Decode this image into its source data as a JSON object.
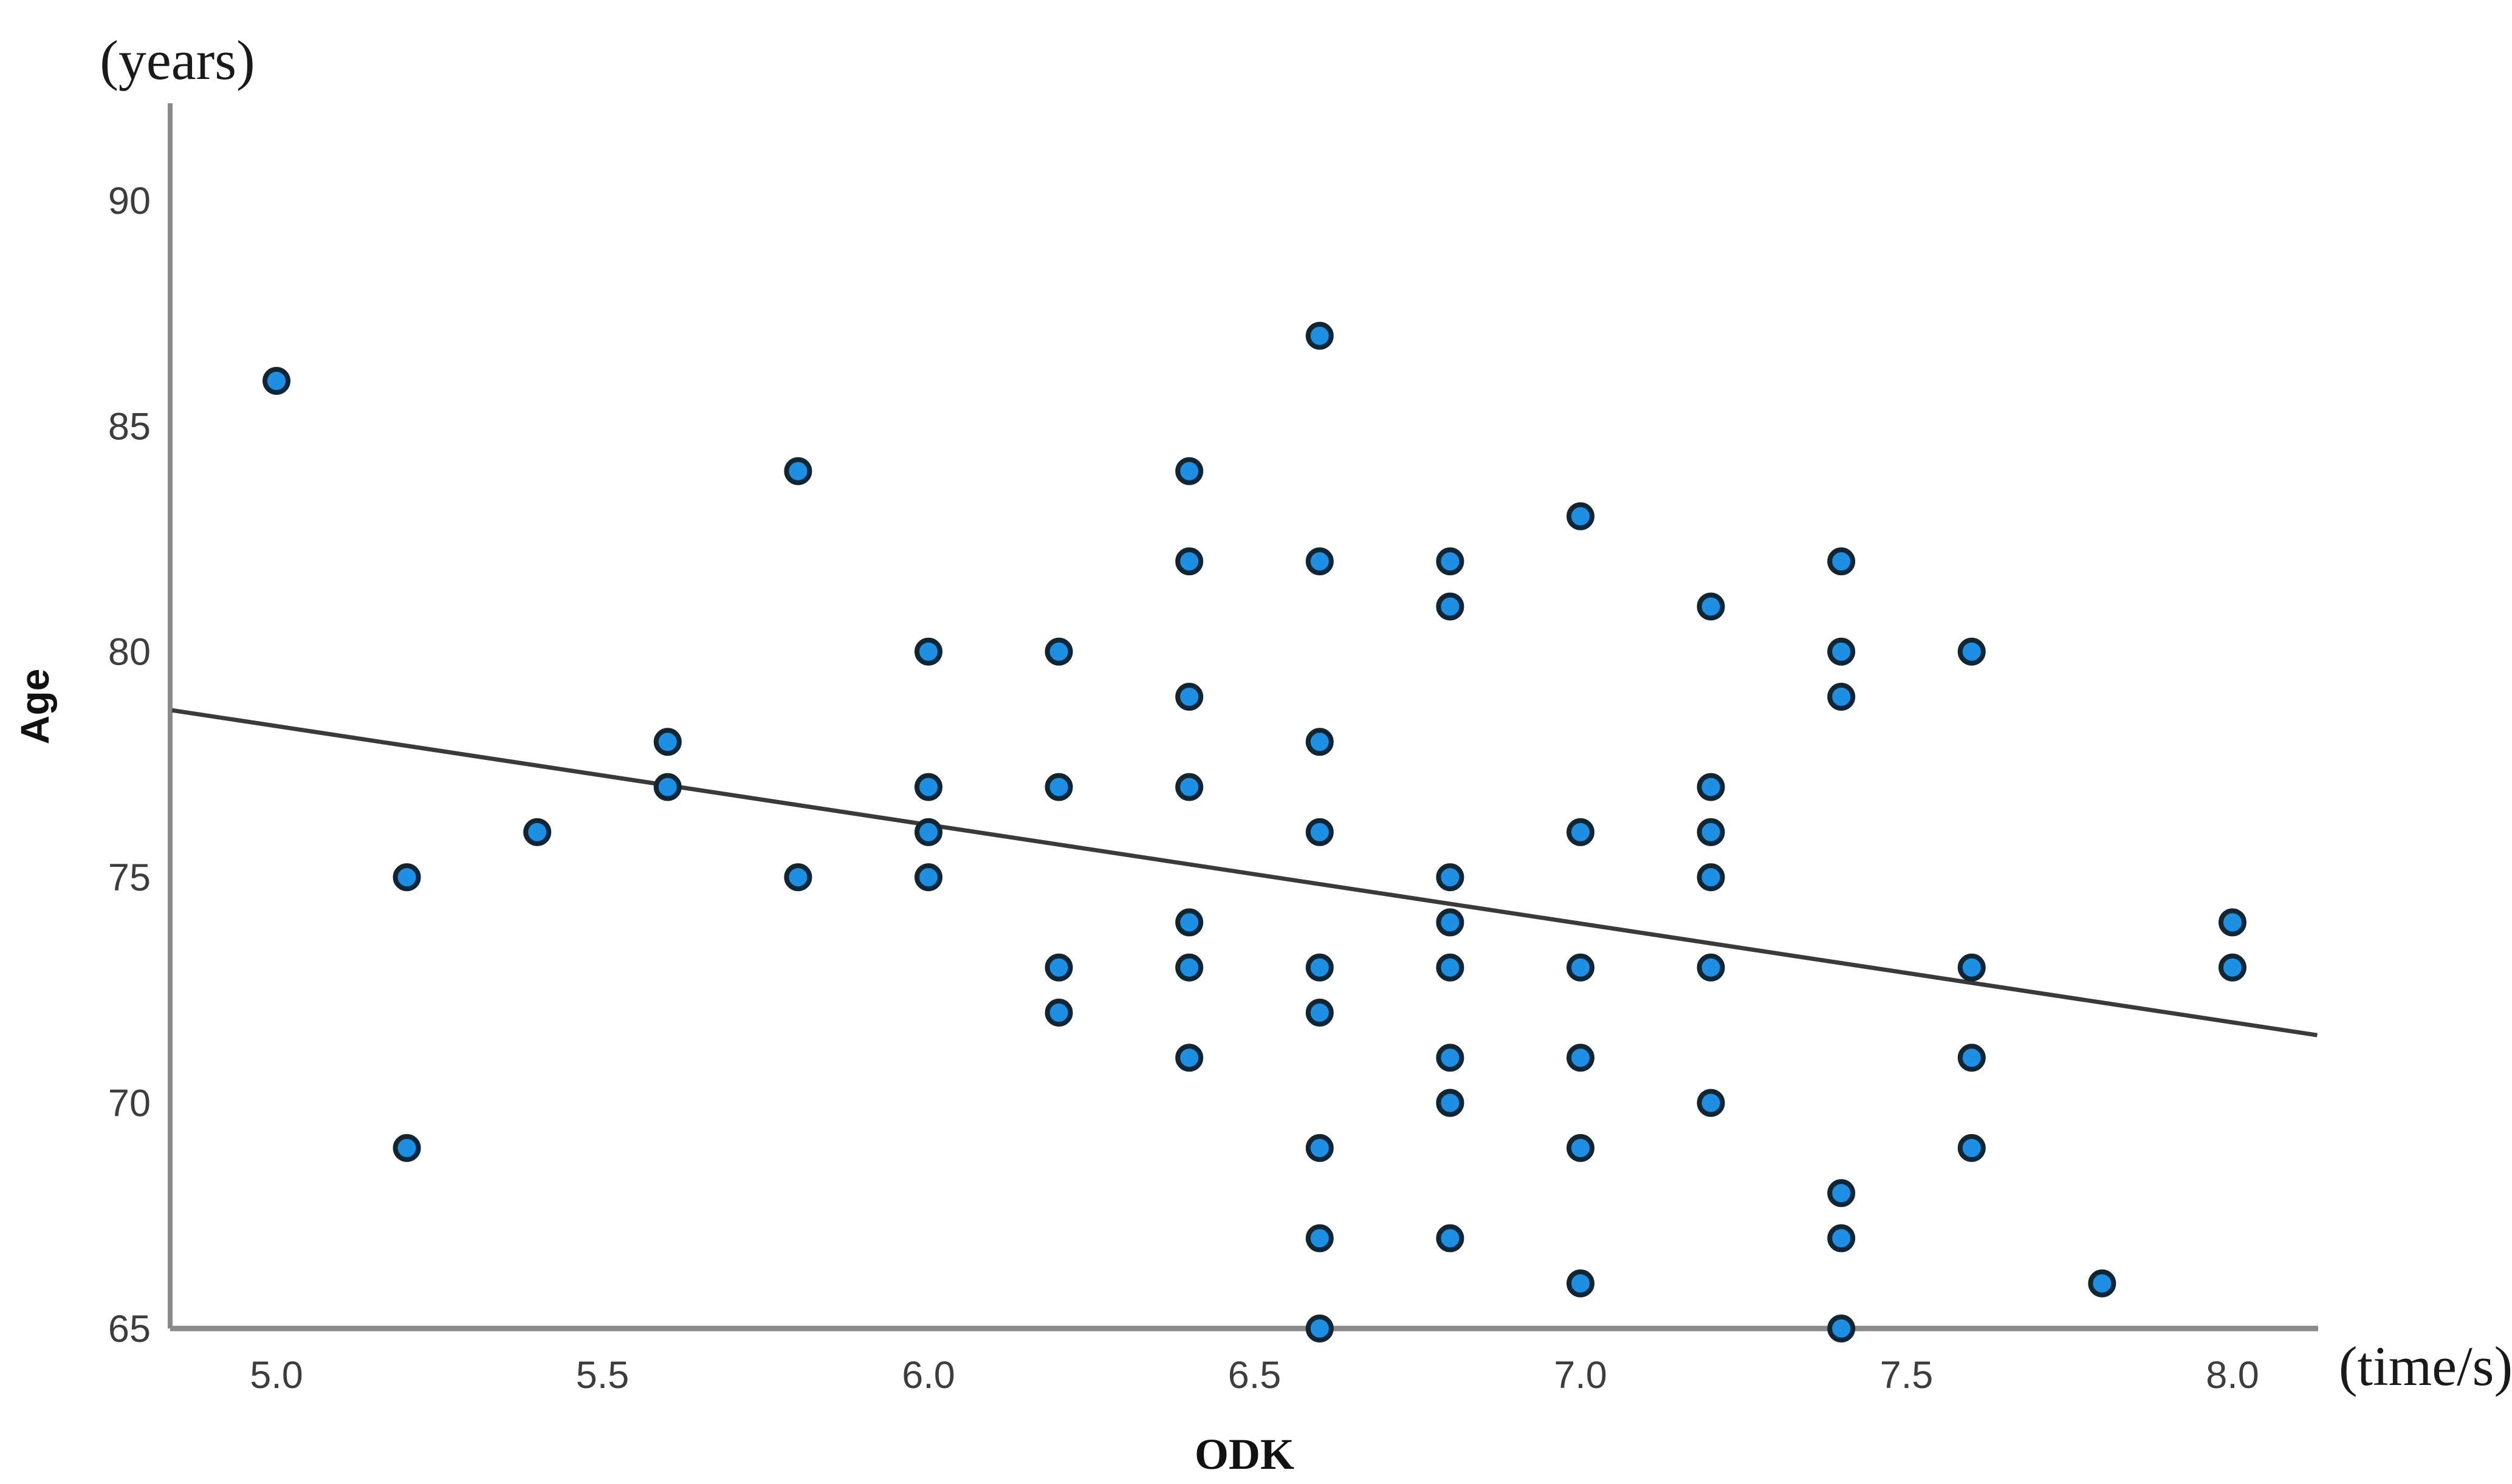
{
  "chart_data": {
    "type": "scatter",
    "title": "",
    "xlabel": "ODK",
    "x_unit_label": "(time/s)",
    "ylabel": "Age",
    "y_unit_label": "(years)",
    "x_tick_values": [
      5.0,
      5.5,
      6.0,
      6.5,
      7.0,
      7.5,
      8.0
    ],
    "x_tick_labels": [
      "5.0",
      "5.5",
      "6.0",
      "6.5",
      "7.0",
      "7.5",
      "8.0"
    ],
    "y_tick_values": [
      65,
      70,
      75,
      80,
      85,
      90
    ],
    "y_tick_labels": [
      "65",
      "70",
      "75",
      "80",
      "85",
      "90"
    ],
    "xlim": [
      4.84,
      8.15
    ],
    "ylim": [
      65,
      92.2
    ],
    "grid": false,
    "legend_position": "none",
    "point_fill_color": "#1e8fe2",
    "point_edge_color": "#112635",
    "trend_line_color": "#3a3a3a",
    "axis_color": "#8a8a8a",
    "points": [
      [
        5.0,
        86
      ],
      [
        5.2,
        75
      ],
      [
        5.2,
        69
      ],
      [
        5.4,
        76
      ],
      [
        5.6,
        78
      ],
      [
        5.6,
        77
      ],
      [
        5.8,
        84
      ],
      [
        5.8,
        75
      ],
      [
        6.0,
        80
      ],
      [
        6.0,
        77
      ],
      [
        6.0,
        76
      ],
      [
        6.0,
        75
      ],
      [
        6.2,
        80
      ],
      [
        6.2,
        77
      ],
      [
        6.2,
        73
      ],
      [
        6.2,
        72
      ],
      [
        6.4,
        84
      ],
      [
        6.4,
        82
      ],
      [
        6.4,
        79
      ],
      [
        6.4,
        77
      ],
      [
        6.4,
        74
      ],
      [
        6.4,
        73
      ],
      [
        6.4,
        71
      ],
      [
        6.6,
        87
      ],
      [
        6.6,
        82
      ],
      [
        6.6,
        78
      ],
      [
        6.6,
        76
      ],
      [
        6.6,
        73
      ],
      [
        6.6,
        72
      ],
      [
        6.6,
        69
      ],
      [
        6.6,
        67
      ],
      [
        6.6,
        65
      ],
      [
        6.8,
        82
      ],
      [
        6.8,
        81
      ],
      [
        6.8,
        75
      ],
      [
        6.8,
        74
      ],
      [
        6.8,
        73
      ],
      [
        6.8,
        71
      ],
      [
        6.8,
        70
      ],
      [
        6.8,
        70
      ],
      [
        6.8,
        67
      ],
      [
        7.0,
        83
      ],
      [
        7.0,
        76
      ],
      [
        7.0,
        73
      ],
      [
        7.0,
        71
      ],
      [
        7.0,
        69
      ],
      [
        7.0,
        66
      ],
      [
        7.2,
        81
      ],
      [
        7.2,
        77
      ],
      [
        7.2,
        76
      ],
      [
        7.2,
        75
      ],
      [
        7.2,
        73
      ],
      [
        7.2,
        70
      ],
      [
        7.4,
        82
      ],
      [
        7.4,
        80
      ],
      [
        7.4,
        79
      ],
      [
        7.4,
        68
      ],
      [
        7.4,
        67
      ],
      [
        7.4,
        65
      ],
      [
        7.6,
        80
      ],
      [
        7.6,
        73
      ],
      [
        7.6,
        71
      ],
      [
        7.6,
        69
      ],
      [
        7.8,
        66
      ],
      [
        8.0,
        74
      ],
      [
        8.0,
        73
      ]
    ],
    "trend_line": {
      "x1": 4.84,
      "y1": 78.7,
      "x2": 8.13,
      "y2": 71.5
    }
  }
}
